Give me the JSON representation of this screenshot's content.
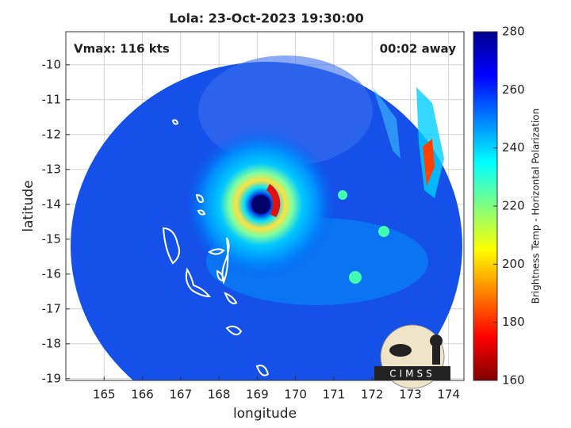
{
  "chart_data": {
    "type": "map",
    "title": "Lola: 23-Oct-2023 19:30:00",
    "annotations": [
      "Vmax: 116 kts",
      "00:02 away"
    ],
    "xlabel": "longitude",
    "ylabel": "latitude",
    "xlim": [
      164.0,
      174.4
    ],
    "xticks": [
      165,
      166,
      167,
      168,
      169,
      170,
      171,
      172,
      173,
      174
    ],
    "ylim": [
      -19.05,
      -9.05
    ],
    "yticks": [
      -10,
      -11,
      -12,
      -13,
      -14,
      -15,
      -16,
      -17,
      -18,
      -19
    ],
    "grid": true,
    "colorbar": {
      "label": "Brightness Temp - Horizontal Polarization",
      "lim": [
        160,
        280
      ],
      "ticks": [
        160,
        180,
        200,
        220,
        240,
        260,
        280
      ],
      "colors": [
        "#800000",
        "#ff0000",
        "#ff8000",
        "#ffff00",
        "#80ff80",
        "#00ffff",
        "#0080ff",
        "#0000ff",
        "#00008f"
      ]
    },
    "logo": "CIMSS"
  }
}
